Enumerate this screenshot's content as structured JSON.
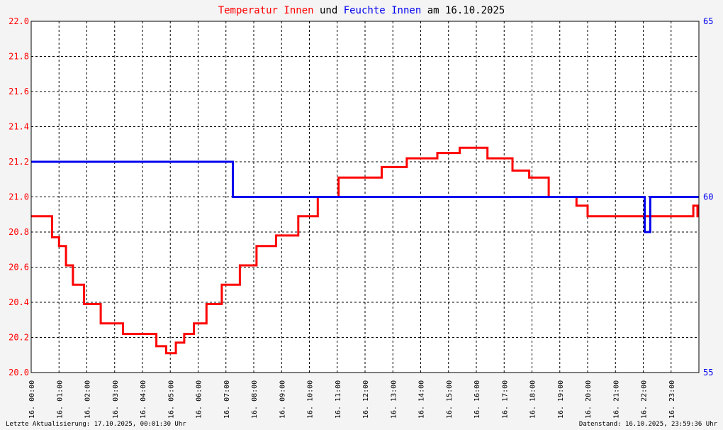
{
  "title": {
    "part1": "Temperatur Innen",
    "part2": " und ",
    "part3": "Feuchte Innen",
    "part4": " am 16.10.2025"
  },
  "colors": {
    "temperature": "#ff0000",
    "humidity": "#0000ee",
    "grid": "#000000",
    "background": "#ffffff"
  },
  "footer": {
    "left": "Letzte Aktualisierung: 17.10.2025, 00:01:30 Uhr",
    "right": "Datenstand: 16.10.2025, 23:59:36 Uhr"
  },
  "chart_data": {
    "type": "line",
    "title": "Temperatur Innen und Feuchte Innen am 16.10.2025",
    "x_ticks": [
      "16. 00:00",
      "16. 01:00",
      "16. 02:00",
      "16. 03:00",
      "16. 04:00",
      "16. 05:00",
      "16. 06:00",
      "16. 07:00",
      "16. 08:00",
      "16. 09:00",
      "16. 10:00",
      "16. 11:00",
      "16. 12:00",
      "16. 13:00",
      "16. 14:00",
      "16. 15:00",
      "16. 16:00",
      "16. 17:00",
      "16. 18:00",
      "16. 19:00",
      "16. 20:00",
      "16. 21:00",
      "16. 22:00",
      "16. 23:00"
    ],
    "xlim": [
      0,
      24
    ],
    "y_left": {
      "ylim": [
        20.0,
        22.0
      ],
      "ticks": [
        "20.0",
        "20.2",
        "20.4",
        "20.6",
        "20.8",
        "21.0",
        "21.2",
        "21.4",
        "21.6",
        "21.8",
        "22.0"
      ]
    },
    "y_right": {
      "ylim": [
        55,
        65
      ],
      "ticks": [
        "55",
        "60",
        "65"
      ]
    },
    "grid": true,
    "series": [
      {
        "name": "Temperatur Innen",
        "axis": "left",
        "x": [
          0.0,
          0.75,
          0.75,
          1.0,
          1.0,
          1.25,
          1.25,
          1.5,
          1.5,
          1.9,
          1.9,
          2.5,
          2.5,
          3.3,
          3.3,
          4.5,
          4.5,
          4.85,
          4.85,
          5.2,
          5.2,
          5.5,
          5.5,
          5.85,
          5.85,
          6.3,
          6.3,
          6.85,
          6.85,
          7.5,
          7.5,
          8.1,
          8.1,
          8.8,
          8.8,
          9.6,
          9.6,
          10.3,
          10.3,
          11.05,
          11.05,
          12.6,
          12.6,
          13.5,
          13.5,
          14.6,
          14.6,
          15.4,
          15.4,
          16.4,
          16.4,
          17.3,
          17.3,
          17.9,
          17.9,
          18.6,
          18.6,
          19.6,
          19.6,
          20.0,
          20.0,
          23.8,
          23.8,
          23.95,
          23.95,
          24.0
        ],
        "y": [
          20.89,
          20.89,
          20.77,
          20.77,
          20.72,
          20.72,
          20.61,
          20.61,
          20.5,
          20.5,
          20.39,
          20.39,
          20.28,
          20.28,
          20.22,
          20.22,
          20.15,
          20.15,
          20.11,
          20.11,
          20.17,
          20.17,
          20.22,
          20.22,
          20.28,
          20.28,
          20.39,
          20.39,
          20.5,
          20.5,
          20.61,
          20.61,
          20.72,
          20.72,
          20.78,
          20.78,
          20.89,
          20.89,
          21.0,
          21.0,
          21.11,
          21.11,
          21.17,
          21.17,
          21.22,
          21.22,
          21.25,
          21.25,
          21.28,
          21.28,
          21.22,
          21.22,
          21.15,
          21.15,
          21.11,
          21.11,
          21.0,
          21.0,
          20.95,
          20.95,
          20.89,
          20.89,
          20.95,
          20.95,
          20.89,
          20.89
        ]
      },
      {
        "name": "Feuchte Innen",
        "axis": "right",
        "x": [
          0.0,
          7.25,
          7.25,
          22.05,
          22.05,
          22.25,
          22.25,
          24.0
        ],
        "y": [
          61,
          61,
          60,
          60,
          59,
          59,
          60,
          60
        ]
      }
    ]
  }
}
